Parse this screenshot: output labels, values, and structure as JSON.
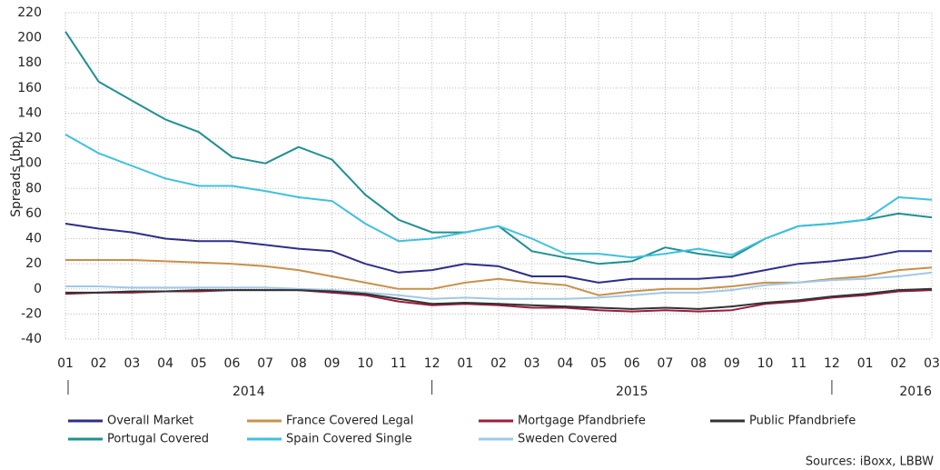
{
  "chart_data": {
    "type": "line",
    "y_label": "Spreads (bp)",
    "source": "Sources: iBoxx, LBBW",
    "categories": [
      "01",
      "02",
      "03",
      "04",
      "05",
      "06",
      "07",
      "08",
      "09",
      "10",
      "11",
      "12",
      "01",
      "02",
      "03",
      "04",
      "05",
      "06",
      "07",
      "08",
      "09",
      "10",
      "11",
      "12",
      "01",
      "02",
      "03"
    ],
    "years": [
      "2014",
      "2015",
      "2016"
    ],
    "ylim": [
      -40,
      220
    ],
    "yticks": [
      -40,
      -20,
      0,
      20,
      40,
      60,
      80,
      100,
      120,
      140,
      160,
      180,
      200,
      220
    ],
    "grid": true,
    "legend": "bottom",
    "series": [
      {
        "name": "Overall Market",
        "color": "#2e2e8a",
        "values": [
          52,
          48,
          45,
          40,
          38,
          38,
          35,
          32,
          30,
          20,
          13,
          15,
          20,
          18,
          10,
          10,
          5,
          8,
          8,
          8,
          10,
          15,
          20,
          22,
          25,
          30,
          30
        ]
      },
      {
        "name": "Portugal Covered",
        "color": "#1f9090",
        "values": [
          205,
          165,
          150,
          135,
          125,
          105,
          100,
          113,
          103,
          75,
          55,
          45,
          45,
          50,
          30,
          25,
          20,
          22,
          33,
          28,
          25,
          40,
          50,
          52,
          55,
          60,
          57
        ]
      },
      {
        "name": "France Covered Legal",
        "color": "#c8904a",
        "values": [
          23,
          23,
          23,
          22,
          21,
          20,
          18,
          15,
          10,
          5,
          0,
          0,
          5,
          8,
          5,
          3,
          -5,
          -2,
          0,
          0,
          2,
          5,
          5,
          8,
          10,
          15,
          17
        ]
      },
      {
        "name": "Spain Covered Single",
        "color": "#3ec1e0",
        "values": [
          123,
          108,
          98,
          88,
          82,
          82,
          78,
          73,
          70,
          52,
          38,
          40,
          45,
          50,
          40,
          28,
          28,
          25,
          28,
          32,
          27,
          40,
          50,
          52,
          55,
          73,
          71
        ]
      },
      {
        "name": "Mortgage Pfandbriefe",
        "color": "#9b1c3c",
        "values": [
          -4,
          -3,
          -3,
          -2,
          -2,
          -1,
          -1,
          -1,
          -3,
          -5,
          -10,
          -13,
          -12,
          -13,
          -15,
          -15,
          -17,
          -18,
          -17,
          -18,
          -17,
          -12,
          -10,
          -7,
          -5,
          -2,
          -1
        ]
      },
      {
        "name": "Sweden Covered",
        "color": "#a0c8e8",
        "values": [
          2,
          2,
          1,
          1,
          1,
          1,
          1,
          0,
          -1,
          -3,
          -5,
          -8,
          -7,
          -8,
          -8,
          -8,
          -7,
          -5,
          -3,
          -3,
          -1,
          3,
          5,
          7,
          8,
          10,
          13
        ]
      },
      {
        "name": "Public  Pfandbriefe",
        "color": "#333333",
        "values": [
          -3,
          -3,
          -2,
          -2,
          -1,
          -1,
          -1,
          -1,
          -2,
          -4,
          -8,
          -12,
          -11,
          -12,
          -13,
          -14,
          -15,
          -16,
          -15,
          -16,
          -14,
          -11,
          -9,
          -6,
          -4,
          -1,
          0
        ]
      }
    ]
  }
}
